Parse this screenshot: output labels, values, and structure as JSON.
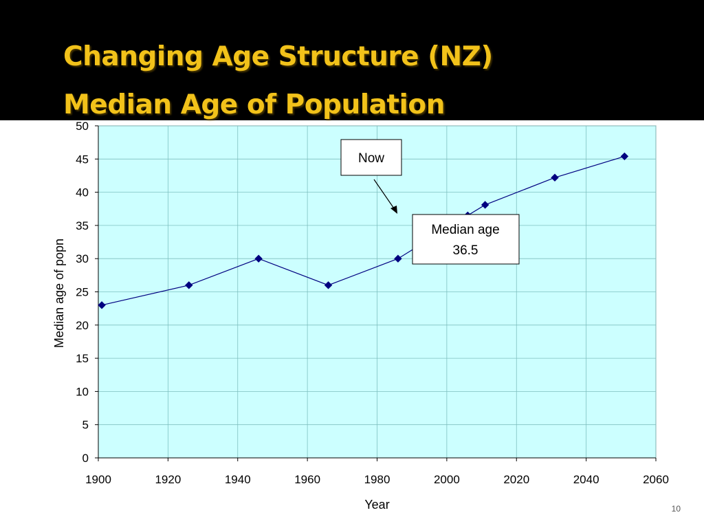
{
  "slide": {
    "title_line1": "Changing Age Structure (NZ)",
    "title_line2": "Median Age of Population",
    "page_number": "10",
    "colors": {
      "title_band": "#000000",
      "title_text": "#f2c21a",
      "plot_bg": "#ccffff",
      "series": "#000080"
    }
  },
  "chart_data": {
    "type": "line",
    "title": "",
    "xlabel": "Year",
    "ylabel": "Median age of popn",
    "xlim": [
      1900,
      2060
    ],
    "ylim": [
      0,
      50
    ],
    "x_ticks": [
      1900,
      1920,
      1940,
      1960,
      1980,
      2000,
      2020,
      2040,
      2060
    ],
    "y_ticks": [
      0,
      5,
      10,
      15,
      20,
      25,
      30,
      35,
      40,
      45,
      50
    ],
    "grid": true,
    "series": [
      {
        "x": [
          1901,
          1926,
          1946,
          1966,
          1986,
          2006,
          2011,
          2031,
          2051
        ],
        "y": [
          23,
          26,
          30,
          26,
          30,
          36.5,
          38.1,
          42.2,
          45.4
        ],
        "marker": "diamond"
      }
    ],
    "annotations": [
      {
        "text": "Now"
      },
      {
        "text_line1": "Median age",
        "text_line2": "36.5"
      }
    ]
  }
}
